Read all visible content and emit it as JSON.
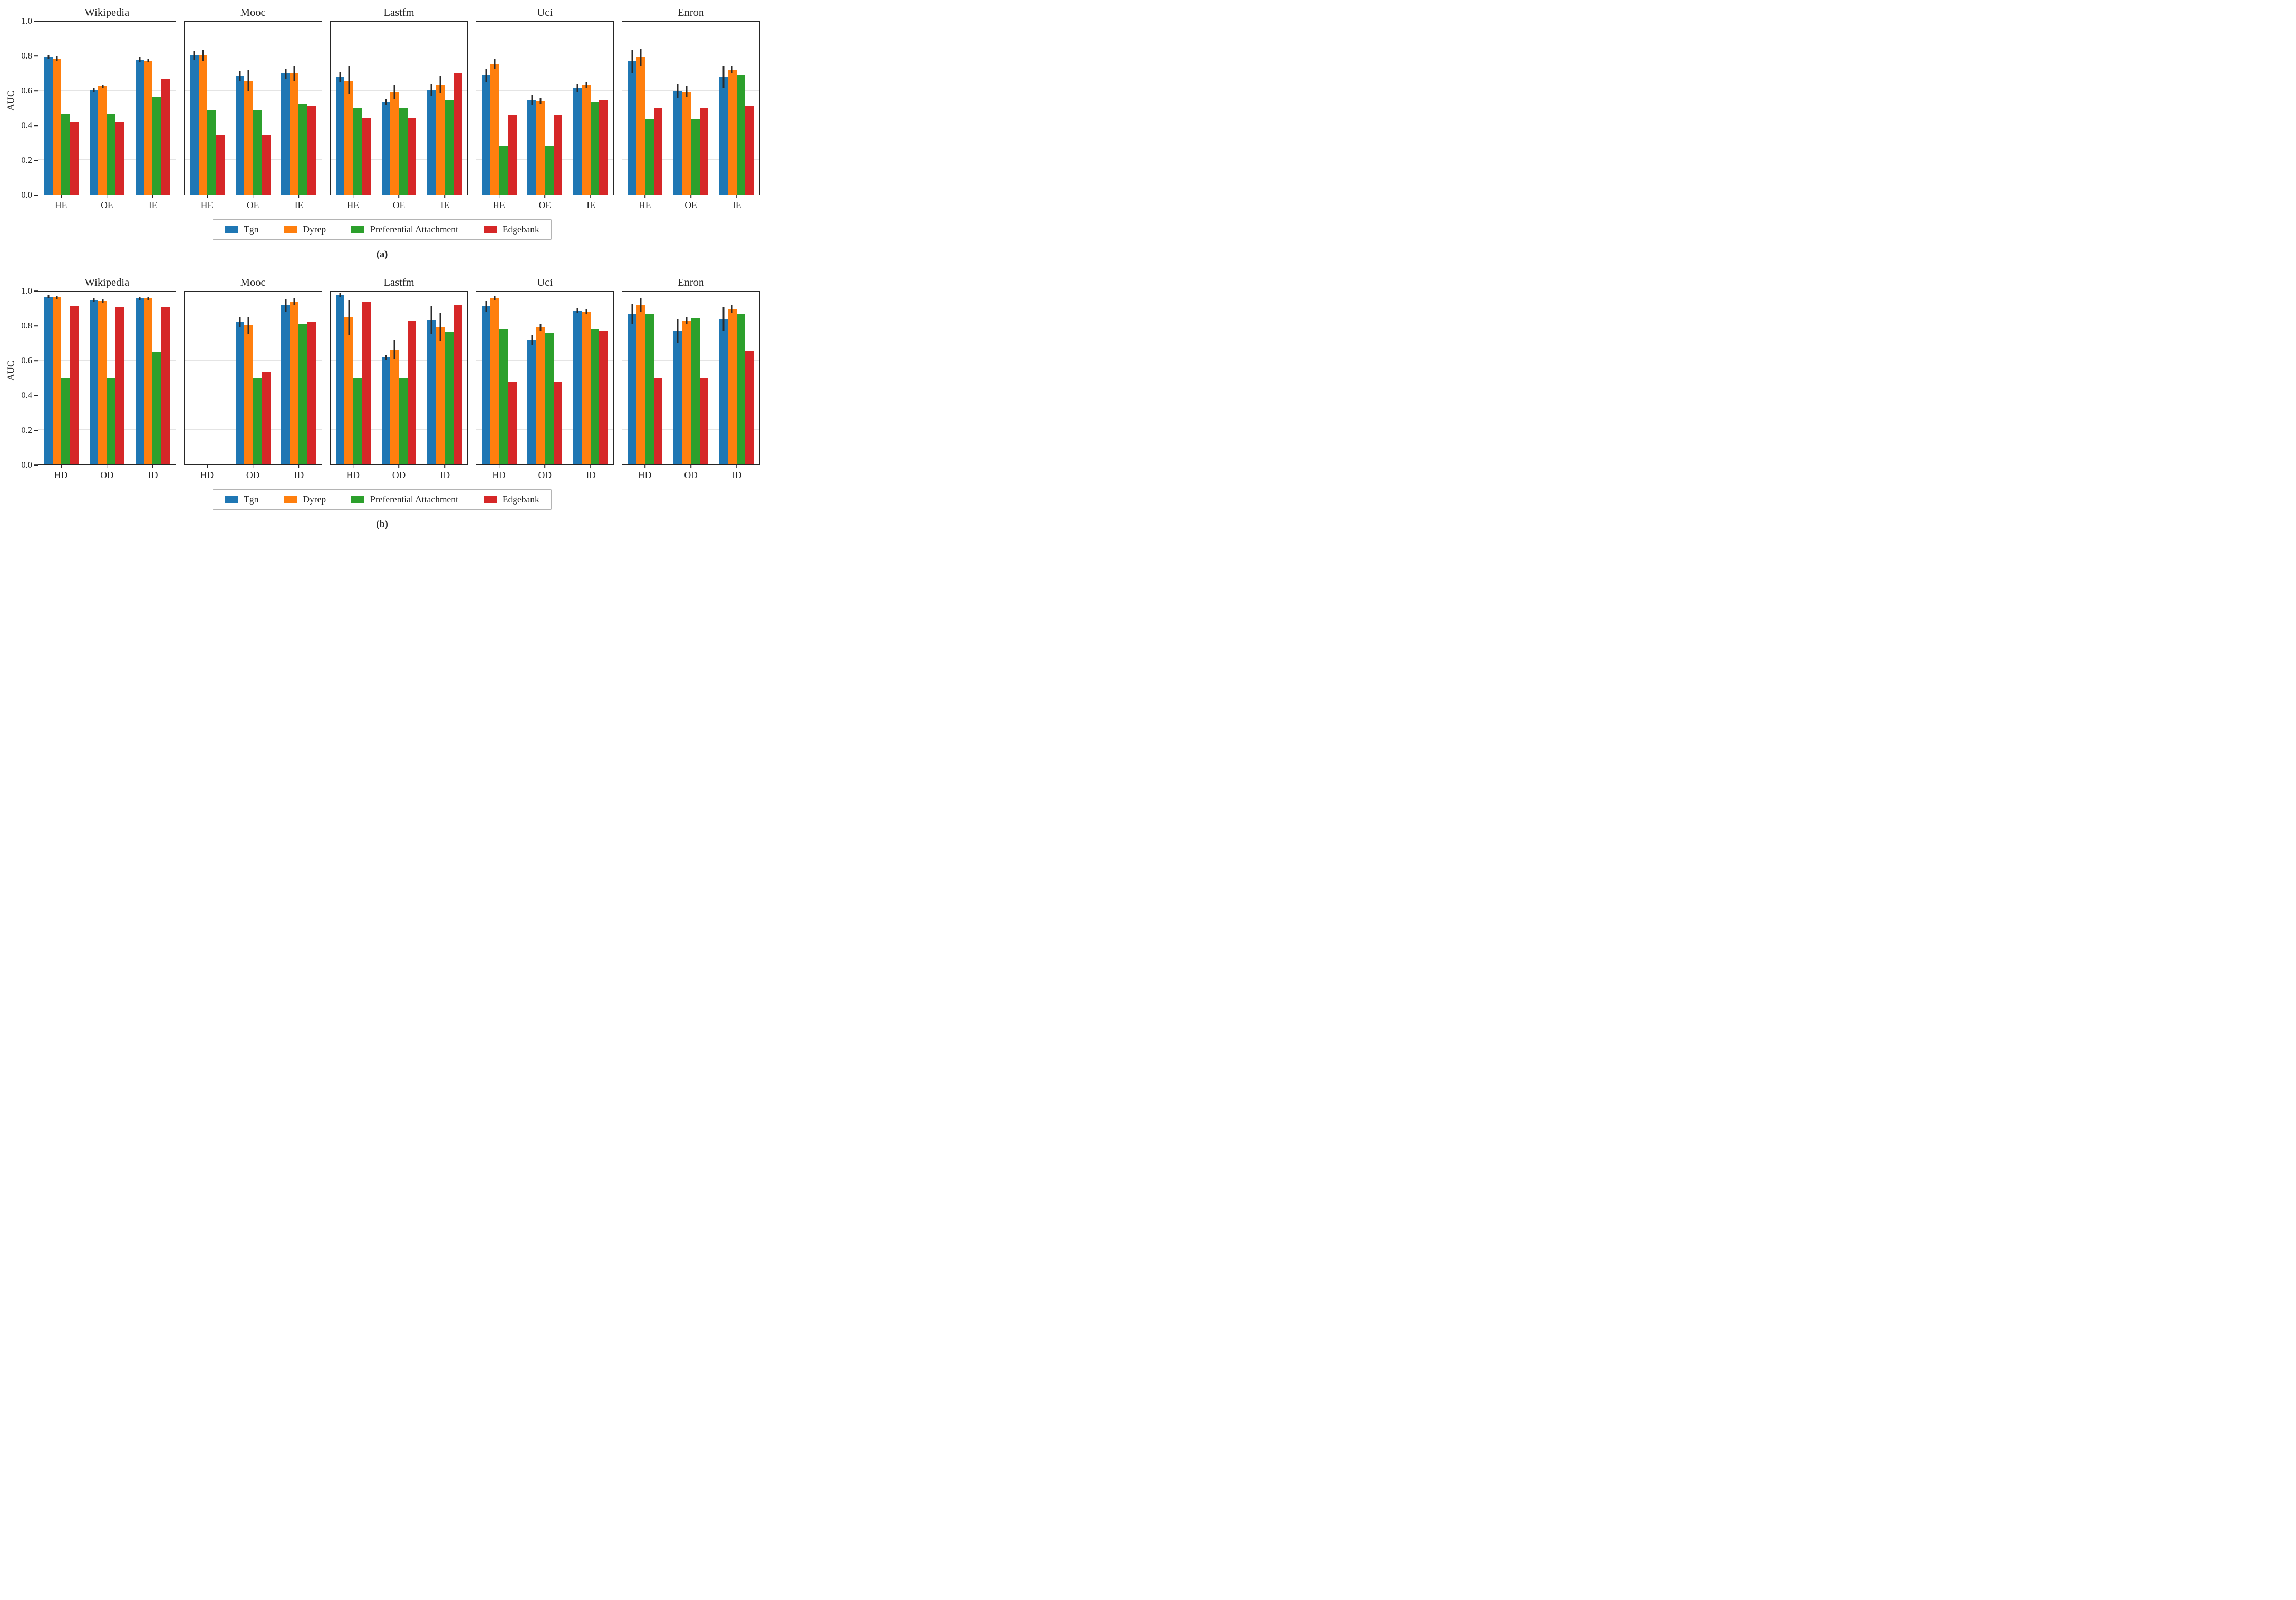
{
  "chart_data": [
    {
      "type": "bar",
      "caption": "(a)",
      "ylabel": "AUC",
      "ylim": [
        0,
        1
      ],
      "yticks": [
        "1.0",
        "0.8",
        "0.6",
        "0.4",
        "0.2",
        "0.0"
      ],
      "grid": "horizontal",
      "legend_position": "below",
      "series": [
        "Tgn",
        "Dyrep",
        "Preferential Attachment",
        "Edgebank"
      ],
      "colors": [
        "#1f77b4",
        "#ff7f0e",
        "#2ca02c",
        "#d62728"
      ],
      "error_bar_color": "#2b2b2b",
      "categories": [
        "HE",
        "OE",
        "IE"
      ],
      "legend": [
        "Tgn",
        "Dyrep",
        "Preferential Attachment",
        "Edgebank"
      ],
      "subplots": [
        {
          "title": "Wikipedia",
          "groups": [
            {
              "label": "HE",
              "values": [
                0.795,
                0.785,
                0.465,
                0.42
              ],
              "errors": [
                0.012,
                0.015,
                null,
                null
              ]
            },
            {
              "label": "OE",
              "values": [
                0.605,
                0.625,
                0.465,
                0.42
              ],
              "errors": [
                0.01,
                0.01,
                null,
                null
              ]
            },
            {
              "label": "IE",
              "values": [
                0.78,
                0.775,
                0.565,
                0.67
              ],
              "errors": [
                0.012,
                0.01,
                null,
                null
              ]
            }
          ]
        },
        {
          "title": "Mooc",
          "groups": [
            {
              "label": "HE",
              "values": [
                0.805,
                0.805,
                0.49,
                0.345
              ],
              "errors": [
                0.025,
                0.03,
                null,
                null
              ]
            },
            {
              "label": "OE",
              "values": [
                0.685,
                0.66,
                0.49,
                0.345
              ],
              "errors": [
                0.03,
                0.06,
                null,
                null
              ]
            },
            {
              "label": "IE",
              "values": [
                0.7,
                0.7,
                0.525,
                0.51
              ],
              "errors": [
                0.03,
                0.04,
                null,
                null
              ]
            }
          ]
        },
        {
          "title": "Lastfm",
          "groups": [
            {
              "label": "HE",
              "values": [
                0.68,
                0.66,
                0.5,
                0.445
              ],
              "errors": [
                0.03,
                0.08,
                null,
                null
              ]
            },
            {
              "label": "OE",
              "values": [
                0.535,
                0.595,
                0.5,
                0.445
              ],
              "errors": [
                0.02,
                0.04,
                null,
                null
              ]
            },
            {
              "label": "IE",
              "values": [
                0.605,
                0.635,
                0.55,
                0.7
              ],
              "errors": [
                0.035,
                0.05,
                null,
                null
              ]
            }
          ]
        },
        {
          "title": "Uci",
          "groups": [
            {
              "label": "HE",
              "values": [
                0.69,
                0.755,
                0.285,
                0.46
              ],
              "errors": [
                0.04,
                0.03,
                null,
                null
              ]
            },
            {
              "label": "OE",
              "values": [
                0.545,
                0.54,
                0.285,
                0.46
              ],
              "errors": [
                0.03,
                0.02,
                null,
                null
              ]
            },
            {
              "label": "IE",
              "values": [
                0.615,
                0.635,
                0.535,
                0.55
              ],
              "errors": [
                0.025,
                0.015,
                null,
                null
              ]
            }
          ]
        },
        {
          "title": "Enron",
          "groups": [
            {
              "label": "HE",
              "values": [
                0.77,
                0.795,
                0.44,
                0.5
              ],
              "errors": [
                0.07,
                0.05,
                null,
                null
              ]
            },
            {
              "label": "OE",
              "values": [
                0.6,
                0.595,
                0.44,
                0.5
              ],
              "errors": [
                0.04,
                0.03,
                null,
                null
              ]
            },
            {
              "label": "IE",
              "values": [
                0.68,
                0.72,
                0.69,
                0.51
              ],
              "errors": [
                0.06,
                0.02,
                null,
                null
              ]
            }
          ]
        }
      ]
    },
    {
      "type": "bar",
      "caption": "(b)",
      "ylabel": "AUC",
      "ylim": [
        0,
        1
      ],
      "yticks": [
        "1.0",
        "0.8",
        "0.6",
        "0.4",
        "0.2",
        "0.0"
      ],
      "grid": "horizontal",
      "legend_position": "below",
      "series": [
        "Tgn",
        "Dyrep",
        "Preferential Attachment",
        "Edgebank"
      ],
      "colors": [
        "#1f77b4",
        "#ff7f0e",
        "#2ca02c",
        "#d62728"
      ],
      "error_bar_color": "#2b2b2b",
      "categories": [
        "HD",
        "OD",
        "ID"
      ],
      "legend": [
        "Tgn",
        "Dyrep",
        "Preferential Attachment",
        "Edgebank"
      ],
      "subplots": [
        {
          "title": "Wikipedia",
          "groups": [
            {
              "label": "HD",
              "values": [
                0.97,
                0.965,
                0.5,
                0.915
              ],
              "errors": [
                0.008,
                0.008,
                null,
                null
              ]
            },
            {
              "label": "OD",
              "values": [
                0.95,
                0.945,
                0.5,
                0.91
              ],
              "errors": [
                0.01,
                0.008,
                null,
                null
              ]
            },
            {
              "label": "ID",
              "values": [
                0.96,
                0.96,
                0.65,
                0.91
              ],
              "errors": [
                0.008,
                0.008,
                null,
                null
              ]
            }
          ]
        },
        {
          "title": "Mooc",
          "groups": [
            {
              "label": "HD",
              "values": [
                null,
                null,
                null,
                null
              ],
              "errors": [
                null,
                null,
                null,
                null
              ]
            },
            {
              "label": "OD",
              "values": [
                0.825,
                0.805,
                0.5,
                0.535
              ],
              "errors": [
                0.03,
                0.05,
                null,
                null
              ]
            },
            {
              "label": "ID",
              "values": [
                0.92,
                0.94,
                0.815,
                0.825
              ],
              "errors": [
                0.035,
                0.02,
                null,
                null
              ]
            }
          ]
        },
        {
          "title": "Lastfm",
          "groups": [
            {
              "label": "HD",
              "values": [
                0.98,
                0.85,
                0.5,
                0.94
              ],
              "errors": [
                0.01,
                0.1,
                null,
                null
              ]
            },
            {
              "label": "OD",
              "values": [
                0.62,
                0.665,
                0.5,
                0.83
              ],
              "errors": [
                0.015,
                0.055,
                null,
                null
              ]
            },
            {
              "label": "ID",
              "values": [
                0.835,
                0.795,
                0.765,
                0.92
              ],
              "errors": [
                0.08,
                0.08,
                null,
                null
              ]
            }
          ]
        },
        {
          "title": "Uci",
          "groups": [
            {
              "label": "HD",
              "values": [
                0.915,
                0.96,
                0.78,
                0.48
              ],
              "errors": [
                0.03,
                0.012,
                null,
                null
              ]
            },
            {
              "label": "OD",
              "values": [
                0.72,
                0.795,
                0.76,
                0.48
              ],
              "errors": [
                0.03,
                0.02,
                null,
                null
              ]
            },
            {
              "label": "ID",
              "values": [
                0.89,
                0.885,
                0.78,
                0.77
              ],
              "errors": [
                0.012,
                0.015,
                null,
                null
              ]
            }
          ]
        },
        {
          "title": "Enron",
          "groups": [
            {
              "label": "HD",
              "values": [
                0.87,
                0.92,
                0.87,
                0.5
              ],
              "errors": [
                0.06,
                0.04,
                null,
                null
              ]
            },
            {
              "label": "OD",
              "values": [
                0.77,
                0.83,
                0.845,
                0.5
              ],
              "errors": [
                0.07,
                0.02,
                null,
                null
              ]
            },
            {
              "label": "ID",
              "values": [
                0.84,
                0.9,
                0.87,
                0.655
              ],
              "errors": [
                0.07,
                0.025,
                null,
                null
              ]
            }
          ]
        }
      ]
    }
  ]
}
